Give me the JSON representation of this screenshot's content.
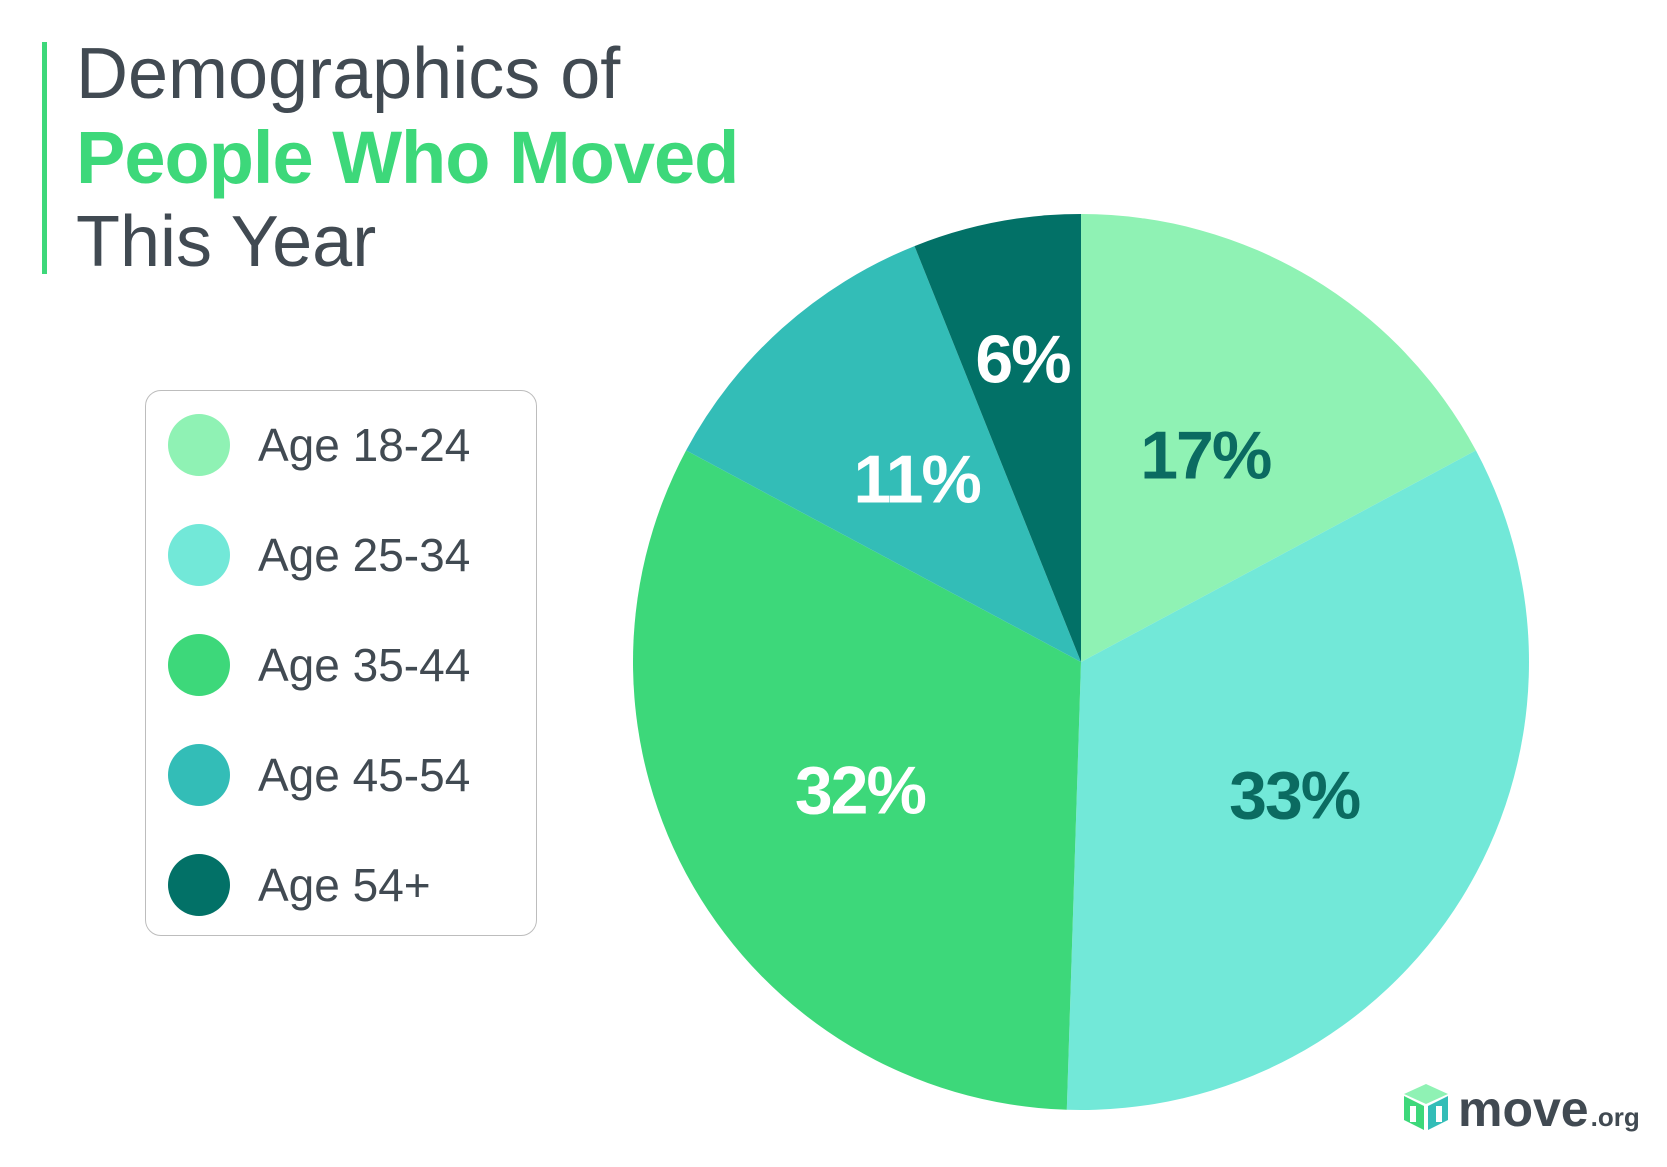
{
  "title": {
    "line1": "Demographics of",
    "line2": "People Who Moved",
    "line3": "This Year"
  },
  "colors": {
    "accent": "#3dd87a",
    "text": "#414a52"
  },
  "chart_data": {
    "type": "pie",
    "title": "Demographics of People Who Moved This Year",
    "start_angle_deg": 0,
    "direction": "clockwise",
    "categories": [
      "Age 18-24",
      "Age 25-34",
      "Age 35-44",
      "Age 45-54",
      "Age 54+"
    ],
    "values": [
      17,
      33,
      32,
      11,
      6
    ],
    "labels": [
      "17%",
      "33%",
      "32%",
      "11%",
      "6%"
    ],
    "colors": [
      "#8ff2b4",
      "#72e8d8",
      "#3dd87a",
      "#33bdb7",
      "#027167"
    ],
    "label_colors": [
      "#0b6b61",
      "#0b6b61",
      "#ffffff",
      "#ffffff",
      "#ffffff"
    ],
    "legend": "left"
  },
  "logo": {
    "word": "move",
    "tld": ".org"
  }
}
